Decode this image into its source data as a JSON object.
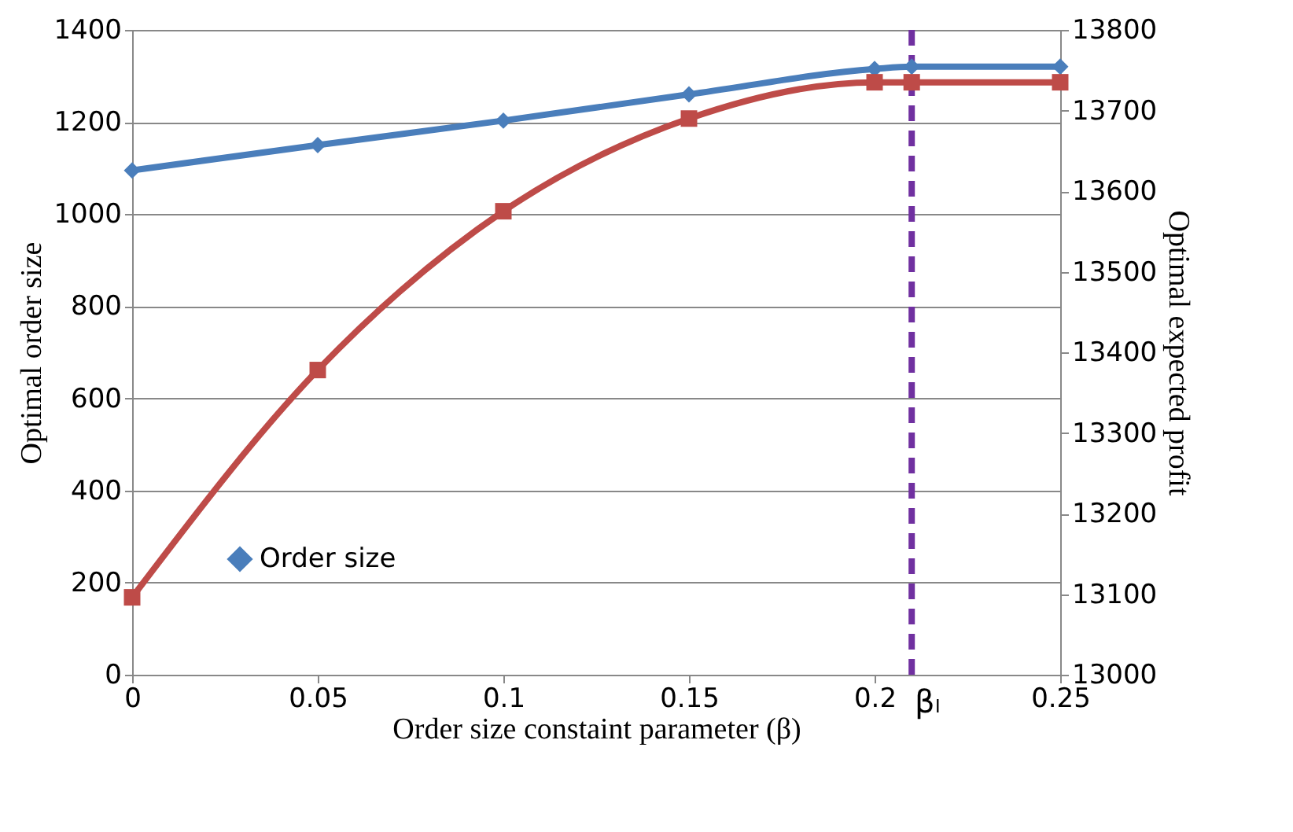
{
  "chart_data": {
    "type": "line",
    "xlabel": "Order size constaint parameter (β)",
    "ylabel": "Optimal order size",
    "y2label": "Optimal expected profit",
    "x": [
      0,
      0.05,
      0.1,
      0.15,
      0.2,
      0.21,
      0.25
    ],
    "series": [
      {
        "name": "Order size",
        "color": "#4a7ebb",
        "marker": "diamond",
        "values": [
          1095,
          1150,
          1203,
          1260,
          1315,
          1320,
          1320
        ]
      },
      {
        "color": "#be4b48",
        "marker": "square",
        "axis": "y2",
        "values": [
          13096,
          13378,
          13575,
          13690,
          13735,
          13735,
          13735
        ]
      }
    ],
    "xlim": [
      0,
      0.25
    ],
    "xticks": [
      0,
      0.05,
      0.1,
      0.15,
      0.2,
      0.25
    ],
    "ylim": [
      0,
      1400
    ],
    "yticks": [
      0,
      200,
      400,
      600,
      800,
      1000,
      1200,
      1400
    ],
    "y2lim": [
      13000,
      13800
    ],
    "y2ticks": [
      13000,
      13100,
      13200,
      13300,
      13400,
      13500,
      13600,
      13700,
      13800
    ],
    "ref_lines": [
      {
        "axis": "x",
        "value": 0.21,
        "label": "βₗ",
        "color": "#7030a0",
        "line_style": "dashed"
      }
    ],
    "grid": "y",
    "legend": "bottom left"
  }
}
